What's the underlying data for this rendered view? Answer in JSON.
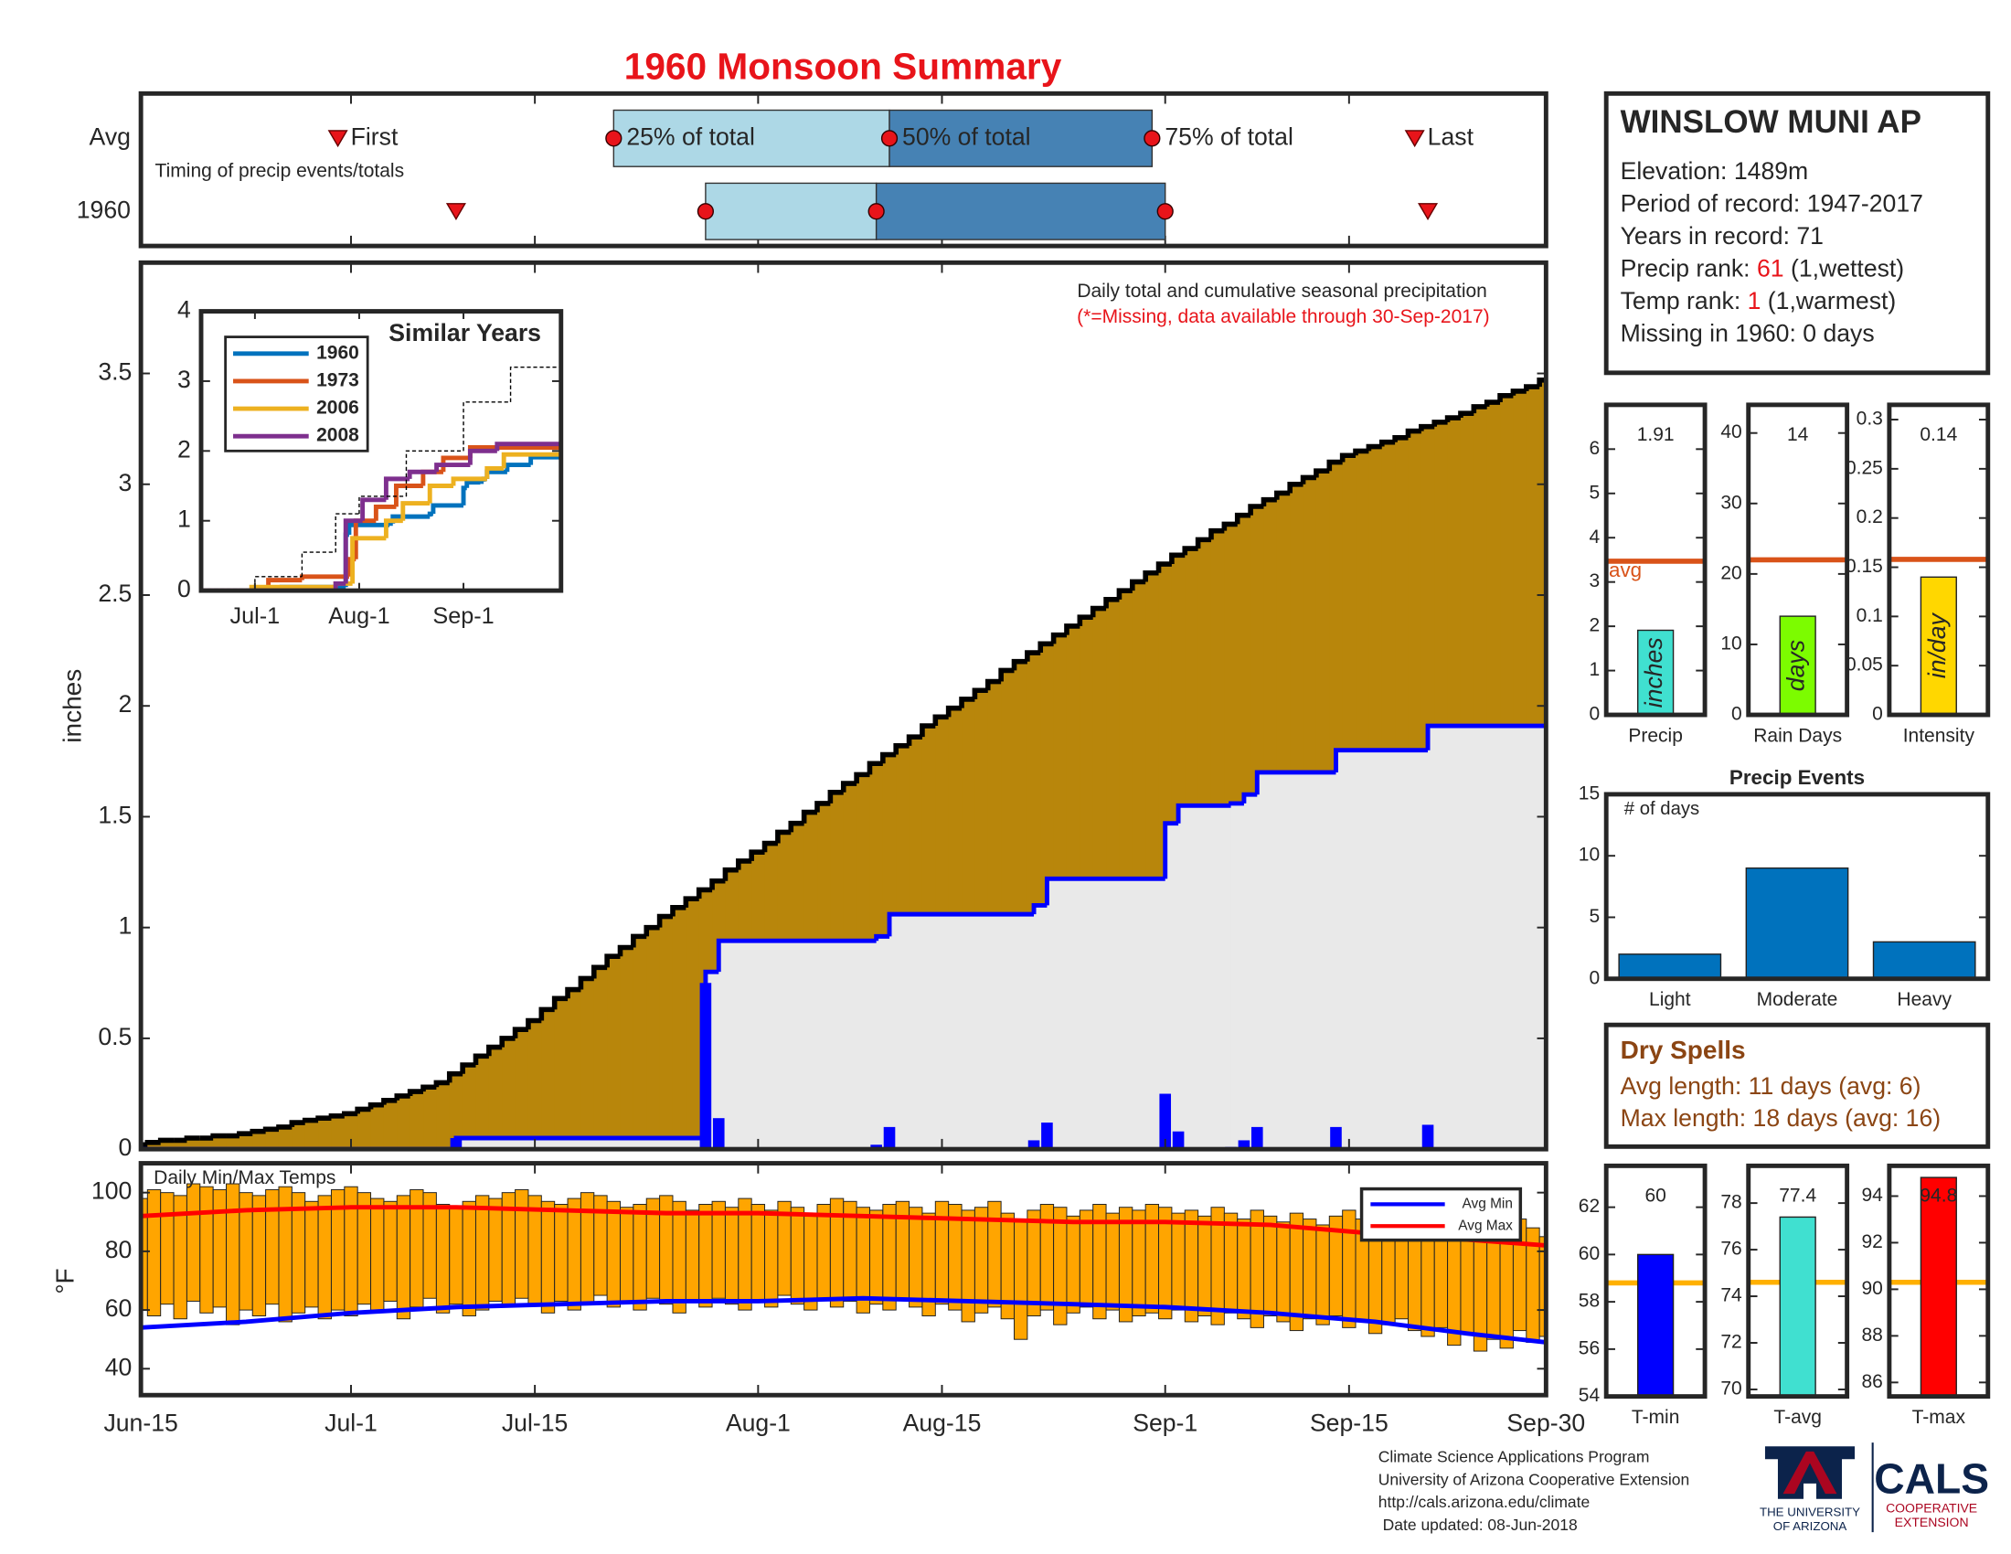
{
  "title": "1960 Monsoon Summary",
  "chart_data": [
    {
      "type": "timing",
      "note": "Timing of precip events/totals",
      "xlim": [
        0,
        107
      ],
      "markers": [
        "First",
        "25% of total",
        "50% of total",
        "75% of total",
        "Last"
      ],
      "colors": [
        "#add8e6",
        "#4682b4"
      ],
      "marker_color": "#e8141a",
      "series": [
        {
          "name": "Avg",
          "values": [
            15,
            36,
            57,
            77,
            97
          ]
        },
        {
          "name": "1960",
          "values": [
            24,
            43,
            56,
            78,
            98
          ]
        }
      ]
    },
    {
      "type": "area",
      "ylabel": "inches",
      "annotation": "Daily total and cumulative seasonal precipitation",
      "note": "(*=Missing, data available through 30-Sep-2017)",
      "note_color": "#e8141a",
      "xlim": [
        0,
        107
      ],
      "ylim": [
        0,
        4
      ],
      "yticks": [
        0,
        0.5,
        1,
        1.5,
        2,
        2.5,
        3,
        3.5
      ],
      "average": {
        "color": "#b8860b",
        "line_color": "#000000",
        "values": [
          0.02,
          0.03,
          0.04,
          0.04,
          0.05,
          0.05,
          0.06,
          0.06,
          0.07,
          0.08,
          0.09,
          0.1,
          0.12,
          0.13,
          0.14,
          0.15,
          0.16,
          0.18,
          0.2,
          0.22,
          0.24,
          0.26,
          0.28,
          0.3,
          0.34,
          0.38,
          0.42,
          0.46,
          0.5,
          0.54,
          0.58,
          0.63,
          0.68,
          0.72,
          0.77,
          0.82,
          0.87,
          0.91,
          0.96,
          1.0,
          1.05,
          1.09,
          1.13,
          1.17,
          1.21,
          1.26,
          1.3,
          1.34,
          1.38,
          1.43,
          1.47,
          1.52,
          1.56,
          1.61,
          1.65,
          1.69,
          1.74,
          1.78,
          1.82,
          1.86,
          1.91,
          1.95,
          1.99,
          2.03,
          2.07,
          2.11,
          2.16,
          2.2,
          2.24,
          2.28,
          2.32,
          2.36,
          2.4,
          2.44,
          2.48,
          2.52,
          2.56,
          2.6,
          2.64,
          2.68,
          2.71,
          2.75,
          2.79,
          2.82,
          2.86,
          2.9,
          2.93,
          2.96,
          3.0,
          3.03,
          3.06,
          3.1,
          3.13,
          3.15,
          3.17,
          3.19,
          3.21,
          3.24,
          3.26,
          3.28,
          3.3,
          3.32,
          3.35,
          3.37,
          3.4,
          3.42,
          3.44,
          3.47
        ]
      },
      "cumulative": {
        "color": "#0000ff",
        "fill": "#e9e9e9",
        "x": [
          0,
          24,
          43,
          44,
          56,
          57,
          68,
          69,
          78,
          79,
          83,
          84,
          85,
          91,
          98
        ],
        "values": [
          0,
          0.05,
          0.8,
          0.94,
          0.96,
          1.06,
          1.1,
          1.22,
          1.47,
          1.55,
          1.56,
          1.6,
          1.7,
          1.8,
          1.91
        ]
      },
      "daily": {
        "color": "#0000ff",
        "x": [
          24,
          43,
          44,
          56,
          57,
          68,
          69,
          78,
          79,
          83,
          84,
          85,
          91,
          98
        ],
        "values": [
          0.05,
          0.75,
          0.14,
          0.02,
          0.1,
          0.04,
          0.12,
          0.25,
          0.08,
          0.01,
          0.04,
          0.1,
          0.1,
          0.11
        ]
      }
    },
    {
      "type": "line",
      "title": "Similar Years",
      "xlim": [
        0,
        107
      ],
      "ylim": [
        0,
        4
      ],
      "yticks": [
        0,
        1,
        2,
        3,
        4
      ],
      "xticks": [
        {
          "value": 16,
          "label": "Jul-1"
        },
        {
          "value": 47,
          "label": "Aug-1"
        },
        {
          "value": 78,
          "label": "Sep-1"
        }
      ],
      "series": [
        {
          "name": "1960",
          "color": "#0072bd",
          "x": [
            0,
            24,
            43,
            44,
            56,
            57,
            68,
            69,
            78,
            79,
            83,
            84,
            85,
            91,
            98
          ],
          "values": [
            0,
            0.05,
            0.8,
            0.94,
            0.96,
            1.06,
            1.1,
            1.22,
            1.47,
            1.55,
            1.56,
            1.6,
            1.7,
            1.8,
            1.91
          ]
        },
        {
          "name": "1973",
          "color": "#d95319",
          "x": [
            0,
            20,
            30,
            44,
            46,
            52,
            58,
            66,
            72,
            80
          ],
          "values": [
            0,
            0.15,
            0.2,
            0.45,
            1.0,
            1.2,
            1.5,
            1.7,
            1.9,
            2.05
          ]
        },
        {
          "name": "2006",
          "color": "#edb120",
          "x": [
            0,
            15,
            40,
            45,
            55,
            60,
            68,
            75,
            85,
            90
          ],
          "values": [
            0,
            0.05,
            0.1,
            0.75,
            1.0,
            1.25,
            1.5,
            1.6,
            1.75,
            1.95
          ]
        },
        {
          "name": "2008",
          "color": "#7e2f8e",
          "x": [
            0,
            40,
            43,
            48,
            55,
            62,
            70,
            80,
            88
          ],
          "values": [
            0,
            0.1,
            1.0,
            1.3,
            1.6,
            1.7,
            1.8,
            2.0,
            2.1
          ]
        },
        {
          "color": "#000000",
          "dash": true,
          "x": [
            0,
            16,
            30,
            40,
            47,
            61,
            78,
            92,
            107
          ],
          "values": [
            0.02,
            0.2,
            0.55,
            1.1,
            1.35,
            2.0,
            2.7,
            3.2,
            3.6
          ]
        }
      ]
    },
    {
      "type": "rangebar",
      "title": "Daily Min/Max Temps",
      "ylabel": "°F",
      "xlim": [
        0,
        107
      ],
      "ylim": [
        31,
        110
      ],
      "yticks": [
        40,
        60,
        80,
        100
      ],
      "xticks": [
        {
          "value": 0,
          "label": "Jun-15"
        },
        {
          "value": 16,
          "label": "Jul-1"
        },
        {
          "value": 30,
          "label": "Jul-15"
        },
        {
          "value": 47,
          "label": "Aug-1"
        },
        {
          "value": 61,
          "label": "Aug-15"
        },
        {
          "value": 78,
          "label": "Sep-1"
        },
        {
          "value": 92,
          "label": "Sep-15"
        },
        {
          "value": 107,
          "label": "Sep-30"
        }
      ],
      "bars": {
        "color": "#ffa500",
        "max": [
          98,
          101,
          100,
          99,
          103,
          102,
          101,
          103,
          100,
          99,
          101,
          102,
          100,
          97,
          99,
          101,
          102,
          100,
          98,
          97,
          99,
          101,
          100,
          96,
          95,
          97,
          99,
          98,
          100,
          101,
          99,
          97,
          96,
          98,
          100,
          99,
          97,
          95,
          96,
          98,
          99,
          97,
          94,
          96,
          97,
          95,
          98,
          96,
          94,
          97,
          95,
          93,
          96,
          98,
          97,
          95,
          94,
          96,
          97,
          95,
          93,
          97,
          96,
          94,
          95,
          97,
          93,
          90,
          94,
          96,
          95,
          92,
          94,
          96,
          93,
          95,
          94,
          96,
          95,
          93,
          94,
          92,
          95,
          93,
          91,
          94,
          92,
          90,
          93,
          91,
          89,
          92,
          94,
          91,
          88,
          90,
          92,
          89,
          91,
          87,
          90,
          88,
          86,
          89,
          87,
          91,
          88,
          85
        ],
        "min": [
          60,
          58,
          62,
          57,
          63,
          59,
          61,
          55,
          60,
          58,
          62,
          56,
          59,
          61,
          57,
          60,
          58,
          62,
          60,
          63,
          57,
          61,
          64,
          59,
          62,
          58,
          60,
          63,
          61,
          64,
          62,
          59,
          63,
          60,
          62,
          65,
          61,
          63,
          60,
          64,
          62,
          59,
          63,
          61,
          64,
          62,
          60,
          63,
          61,
          65,
          62,
          60,
          64,
          61,
          63,
          59,
          62,
          60,
          64,
          61,
          58,
          62,
          60,
          56,
          59,
          61,
          57,
          50,
          58,
          60,
          55,
          59,
          61,
          57,
          60,
          56,
          58,
          59,
          57,
          60,
          56,
          58,
          55,
          59,
          57,
          54,
          58,
          56,
          53,
          57,
          55,
          58,
          54,
          56,
          52,
          55,
          57,
          53,
          51,
          54,
          48,
          52,
          46,
          50,
          47,
          53,
          49,
          51
        ]
      },
      "series": [
        {
          "name": "Avg Min",
          "color": "#0000ff",
          "x": [
            0,
            8,
            16,
            24,
            32,
            40,
            47,
            55,
            63,
            71,
            78,
            86,
            94,
            101,
            107
          ],
          "values": [
            54,
            56,
            59,
            61,
            62,
            63,
            63,
            64,
            63,
            62,
            61,
            59,
            56,
            52,
            49
          ]
        },
        {
          "name": "Avg Max",
          "color": "#ff0000",
          "x": [
            0,
            8,
            16,
            24,
            32,
            40,
            47,
            55,
            63,
            71,
            78,
            86,
            94,
            101,
            107
          ],
          "values": [
            92,
            94,
            95,
            95,
            94,
            93,
            93,
            92,
            91,
            90,
            90,
            89,
            86,
            84,
            82
          ]
        }
      ]
    },
    {
      "type": "bar",
      "categories": [
        "Precip"
      ],
      "values": [
        1.91
      ],
      "data_labels": true,
      "unit_label": "inches",
      "average": 3.47,
      "avg_label": "avg",
      "avg_color": "#d95319",
      "color": "#40e0d0",
      "ylim": [
        0,
        7
      ],
      "yticks": [
        0,
        1,
        2,
        3,
        4,
        5,
        6
      ]
    },
    {
      "type": "bar",
      "categories": [
        "Rain Days"
      ],
      "values": [
        14
      ],
      "data_labels": true,
      "unit_label": "days",
      "average": 22,
      "avg_color": "#d95319",
      "color": "#7cfc00",
      "ylim": [
        0,
        44
      ],
      "yticks": [
        0,
        10,
        20,
        30,
        40
      ]
    },
    {
      "type": "bar",
      "categories": [
        "Intensity"
      ],
      "values": [
        0.14
      ],
      "data_labels": true,
      "unit_label": "in/day",
      "average": 0.158,
      "avg_color": "#d95319",
      "color": "#ffd700",
      "ylim": [
        0,
        0.315
      ],
      "yticks": [
        0,
        0.05,
        0.1,
        0.15,
        0.2,
        0.25,
        0.3
      ]
    },
    {
      "type": "bar",
      "title": "Precip Events",
      "annotation": "# of days",
      "categories": [
        "Light",
        "Moderate",
        "Heavy"
      ],
      "values": [
        2,
        9,
        3
      ],
      "color": "#0072bd",
      "ylim": [
        0,
        15
      ],
      "yticks": [
        0,
        5,
        10,
        15
      ]
    },
    {
      "type": "bar",
      "categories": [
        "T-min"
      ],
      "values": [
        60
      ],
      "data_labels": true,
      "average": 58.8,
      "avg_color": "#ffb000",
      "color": "#0000ff",
      "ylim": [
        54,
        63.75
      ],
      "yticks": [
        54,
        56,
        58,
        60,
        62
      ]
    },
    {
      "type": "bar",
      "categories": [
        "T-avg"
      ],
      "values": [
        77.4
      ],
      "data_labels": true,
      "average": 74.6,
      "avg_color": "#ffb000",
      "color": "#40e0d0",
      "ylim": [
        69.7,
        79.6
      ],
      "yticks": [
        70,
        72,
        74,
        76,
        78
      ]
    },
    {
      "type": "bar",
      "categories": [
        "T-max"
      ],
      "values": [
        94.8
      ],
      "data_labels": true,
      "average": 90.3,
      "avg_color": "#ffb000",
      "color": "#ff0000",
      "ylim": [
        85.4,
        95.3
      ],
      "yticks": [
        86,
        88,
        90,
        92,
        94
      ]
    }
  ],
  "station": {
    "title": "WINSLOW MUNI AP",
    "lines": [
      [
        {
          "text": "Elevation: 1489m"
        }
      ],
      [
        {
          "text": "Period of record: 1947-2017"
        }
      ],
      [
        {
          "text": "Years in record: 71"
        }
      ],
      [
        {
          "text": "Precip rank: "
        },
        {
          "text": "61",
          "color": "#e8141a"
        },
        {
          "text": " (1,wettest)"
        }
      ],
      [
        {
          "text": "Temp rank: "
        },
        {
          "text": "1",
          "color": "#e8141a"
        },
        {
          "text": " (1,warmest)"
        }
      ],
      [
        {
          "text": "Missing in 1960: 0 days"
        }
      ]
    ]
  },
  "dry_spells": {
    "title": "Dry Spells",
    "color": "#8b4513",
    "lines": [
      "Avg length: 11 days (avg: 6)",
      "Max length: 18 days (avg: 16)"
    ]
  },
  "footer": {
    "lines": [
      "Climate Science Applications Program",
      "University of Arizona Cooperative Extension",
      "http://cals.arizona.edu/climate",
      " Date updated: 08-Jun-2018"
    ],
    "university": [
      "THE UNIVERSITY",
      "OF ARIZONA"
    ],
    "college": "CALS",
    "extension": [
      "COOPERATIVE",
      "EXTENSION"
    ]
  }
}
